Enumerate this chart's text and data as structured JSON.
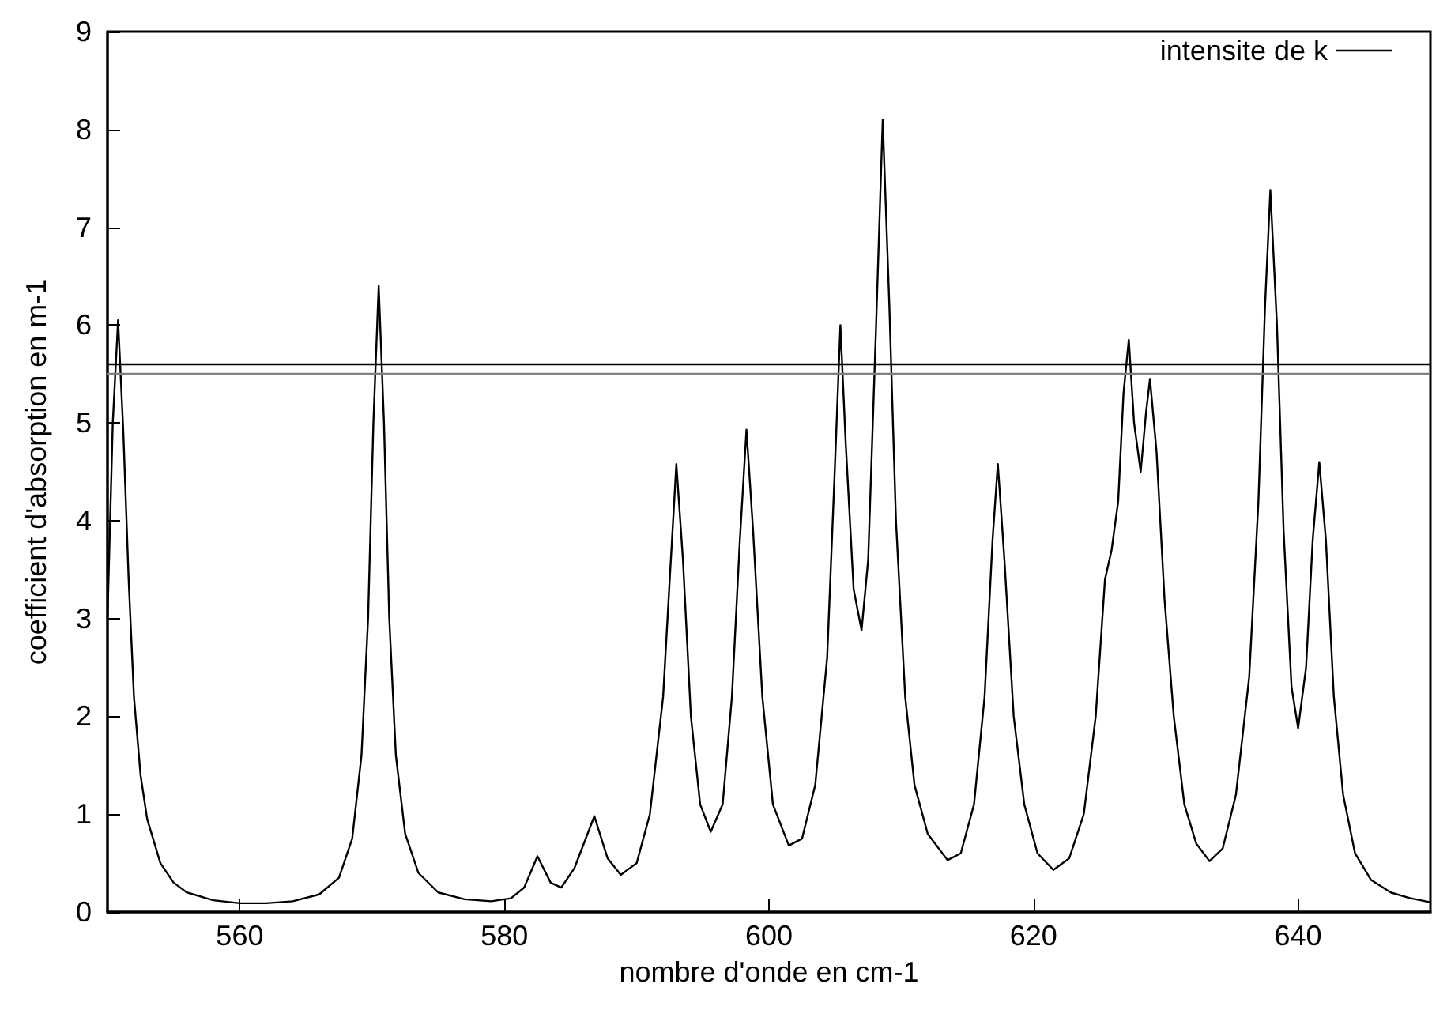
{
  "chart_data": {
    "type": "line",
    "xlabel": "nombre d'onde en cm-1",
    "ylabel": "coefficient d'absorption en m-1",
    "xlim": [
      550,
      650
    ],
    "xticks": [
      560,
      580,
      600,
      620,
      640
    ],
    "ylim": [
      0,
      9
    ],
    "yticks": [
      0,
      1,
      2,
      3,
      4,
      5,
      6,
      7,
      8,
      9
    ],
    "grid": false,
    "legend": "top right",
    "line_style": "solid",
    "ref_lines": [
      {
        "axis": "y",
        "value": 5.6,
        "color": "#000000"
      },
      {
        "axis": "y",
        "value": 5.5,
        "color": "#808080"
      }
    ],
    "series": [
      {
        "name": "intensite de k",
        "color": "#000000",
        "x": [
          550,
          550.4,
          550.8,
          551.2,
          551.6,
          552,
          552.5,
          553,
          554,
          555,
          556,
          558,
          560,
          562,
          564,
          566,
          567.5,
          568.5,
          569.2,
          569.7,
          570.1,
          570.5,
          570.9,
          571.3,
          571.8,
          572.5,
          573.5,
          575,
          577,
          579,
          580.5,
          581.5,
          582.5,
          583.5,
          584.3,
          585.3,
          586.8,
          587.8,
          588.8,
          590,
          591,
          592,
          592.5,
          593,
          593.5,
          594.1,
          594.8,
          595.6,
          596.5,
          597.2,
          597.8,
          598.3,
          598.8,
          599.5,
          600.3,
          601.5,
          602.5,
          603.5,
          604.4,
          605,
          605.4,
          605.8,
          606.4,
          607,
          607.5,
          608.1,
          608.6,
          609.1,
          609.6,
          610.3,
          611,
          612,
          613.5,
          614.5,
          615.5,
          616.3,
          616.9,
          617.3,
          617.8,
          618.5,
          619.3,
          620.3,
          621.5,
          622.7,
          623.8,
          624.7,
          625.4,
          625.9,
          626.4,
          626.8,
          627.2,
          627.6,
          628.1,
          628.5,
          628.8,
          629.3,
          629.9,
          630.6,
          631.4,
          632.3,
          633.3,
          634.3,
          635.3,
          636.3,
          637,
          637.5,
          637.9,
          638.4,
          638.9,
          639.5,
          640,
          640.6,
          641.1,
          641.6,
          642.1,
          642.7,
          643.4,
          644.3,
          645.5,
          647,
          648.5,
          650
        ],
        "values": [
          3.0,
          5.0,
          6.05,
          4.9,
          3.4,
          2.2,
          1.4,
          0.95,
          0.5,
          0.3,
          0.2,
          0.12,
          0.09,
          0.09,
          0.11,
          0.18,
          0.35,
          0.75,
          1.6,
          3.0,
          5.0,
          6.4,
          5.0,
          3.0,
          1.6,
          0.8,
          0.4,
          0.2,
          0.13,
          0.11,
          0.14,
          0.25,
          0.57,
          0.3,
          0.25,
          0.45,
          0.98,
          0.55,
          0.38,
          0.5,
          1.0,
          2.2,
          3.4,
          4.58,
          3.6,
          2.0,
          1.1,
          0.82,
          1.1,
          2.2,
          3.8,
          4.93,
          3.9,
          2.2,
          1.1,
          0.68,
          0.75,
          1.3,
          2.6,
          4.6,
          6.0,
          4.8,
          3.3,
          2.88,
          3.6,
          6.0,
          8.1,
          6.2,
          4.0,
          2.2,
          1.3,
          0.8,
          0.53,
          0.6,
          1.1,
          2.2,
          3.8,
          4.58,
          3.6,
          2.0,
          1.1,
          0.6,
          0.43,
          0.55,
          1.0,
          2.0,
          3.4,
          3.7,
          4.2,
          5.3,
          5.85,
          5.0,
          4.5,
          5.1,
          5.45,
          4.7,
          3.2,
          2.0,
          1.1,
          0.7,
          0.52,
          0.65,
          1.2,
          2.4,
          4.2,
          6.2,
          7.38,
          6.0,
          3.9,
          2.3,
          1.88,
          2.5,
          3.8,
          4.6,
          3.8,
          2.2,
          1.2,
          0.6,
          0.33,
          0.2,
          0.14,
          0.1
        ]
      }
    ]
  }
}
